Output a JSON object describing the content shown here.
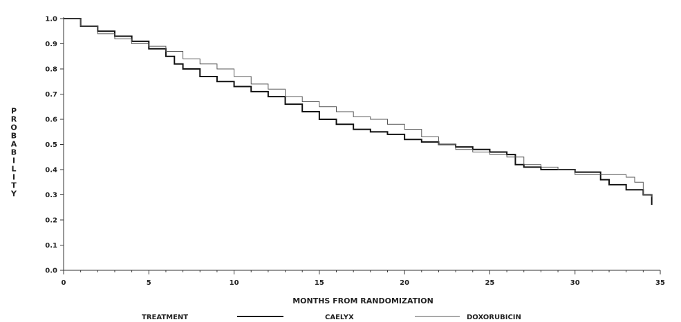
{
  "chart_data": {
    "type": "line",
    "title": "",
    "xlabel": "MONTHS FROM RANDOMIZATION",
    "ylabel": "PROBABILITY",
    "xlim": [
      0,
      35
    ],
    "ylim": [
      0,
      1
    ],
    "xticks": [
      "0",
      "5",
      "10",
      "15",
      "20",
      "25",
      "30",
      "35"
    ],
    "yticks": [
      "0.0",
      "0.1",
      "0.2",
      "0.3",
      "0.4",
      "0.5",
      "0.6",
      "0.7",
      "0.8",
      "0.9",
      "1.0"
    ],
    "grid": false,
    "legend": {
      "title": "TREATMENT",
      "placement": "bottom"
    },
    "series": [
      {
        "name": "CAELYX",
        "color": "#111111",
        "x": [
          0,
          1,
          2,
          3,
          4,
          5,
          6,
          6.5,
          7,
          8,
          9,
          10,
          11,
          12,
          13,
          14,
          15,
          16,
          17,
          18,
          19,
          20,
          21,
          22,
          23,
          24,
          25,
          26,
          26.5,
          27,
          28,
          29,
          30,
          31,
          31.5,
          32,
          33,
          34,
          34.5
        ],
        "y": [
          1.0,
          0.97,
          0.95,
          0.93,
          0.91,
          0.88,
          0.85,
          0.82,
          0.8,
          0.77,
          0.75,
          0.73,
          0.71,
          0.69,
          0.66,
          0.63,
          0.6,
          0.58,
          0.56,
          0.55,
          0.54,
          0.52,
          0.51,
          0.5,
          0.49,
          0.48,
          0.47,
          0.46,
          0.42,
          0.41,
          0.4,
          0.4,
          0.39,
          0.39,
          0.36,
          0.34,
          0.32,
          0.3,
          0.26
        ]
      },
      {
        "name": "DOXORUBICIN",
        "color": "#555555",
        "x": [
          0,
          1,
          2,
          3,
          4,
          5,
          6,
          7,
          8,
          9,
          10,
          11,
          12,
          13,
          14,
          15,
          16,
          17,
          18,
          19,
          20,
          21,
          22,
          23,
          24,
          25,
          26,
          27,
          28,
          29,
          30,
          31,
          32,
          33,
          33.5,
          34,
          34.5
        ],
        "y": [
          1.0,
          0.97,
          0.94,
          0.92,
          0.9,
          0.89,
          0.87,
          0.84,
          0.82,
          0.8,
          0.77,
          0.74,
          0.72,
          0.69,
          0.67,
          0.65,
          0.63,
          0.61,
          0.6,
          0.58,
          0.56,
          0.53,
          0.5,
          0.48,
          0.47,
          0.46,
          0.45,
          0.42,
          0.41,
          0.4,
          0.38,
          0.38,
          0.38,
          0.37,
          0.35,
          0.3,
          0.29
        ]
      }
    ]
  }
}
